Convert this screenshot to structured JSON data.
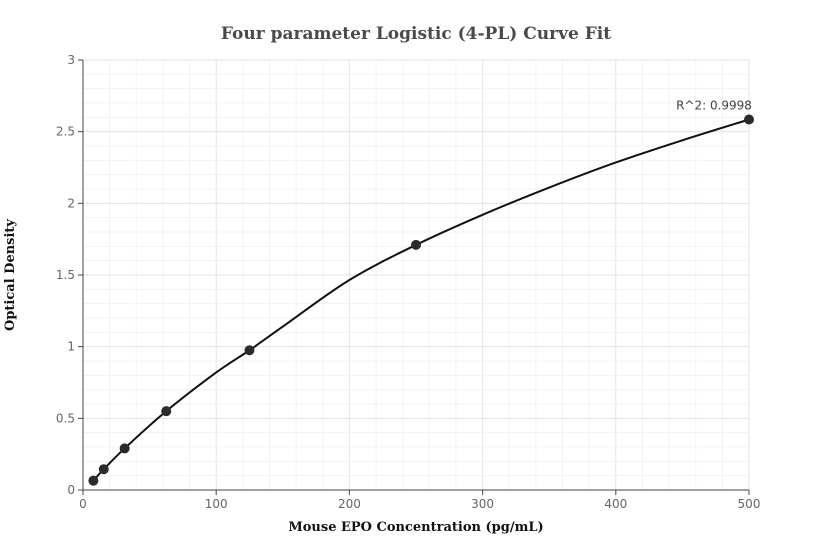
{
  "chart_data": {
    "type": "scatter",
    "title": "Four parameter Logistic (4-PL) Curve Fit",
    "xlabel": "Mouse EPO Concentration (pg/mL)",
    "ylabel": "Optical Density",
    "xlim": [
      0,
      500
    ],
    "ylim": [
      0,
      3
    ],
    "xticks": [
      0,
      100,
      200,
      300,
      400,
      500
    ],
    "yticks": [
      0,
      0.5,
      1,
      1.5,
      2,
      2.5,
      3
    ],
    "grid": true,
    "series": [
      {
        "mode": "markers",
        "x": [
          7.8,
          15.6,
          31.25,
          62.5,
          125,
          250,
          500
        ],
        "y": [
          0.065,
          0.145,
          0.29,
          0.55,
          0.975,
          1.71,
          2.585
        ],
        "color": "#2b2b2b"
      },
      {
        "mode": "line",
        "x": [
          7.8,
          15.6,
          31.25,
          62.5,
          100,
          125,
          150,
          200,
          250,
          300,
          350,
          400,
          450,
          500
        ],
        "y": [
          0.065,
          0.145,
          0.29,
          0.55,
          0.82,
          0.975,
          1.14,
          1.465,
          1.71,
          1.92,
          2.11,
          2.285,
          2.44,
          2.585
        ],
        "color": "#111111"
      }
    ],
    "annotations": [
      {
        "text": "R^2: 0.9998",
        "x": 500,
        "y": 2.585
      }
    ]
  }
}
